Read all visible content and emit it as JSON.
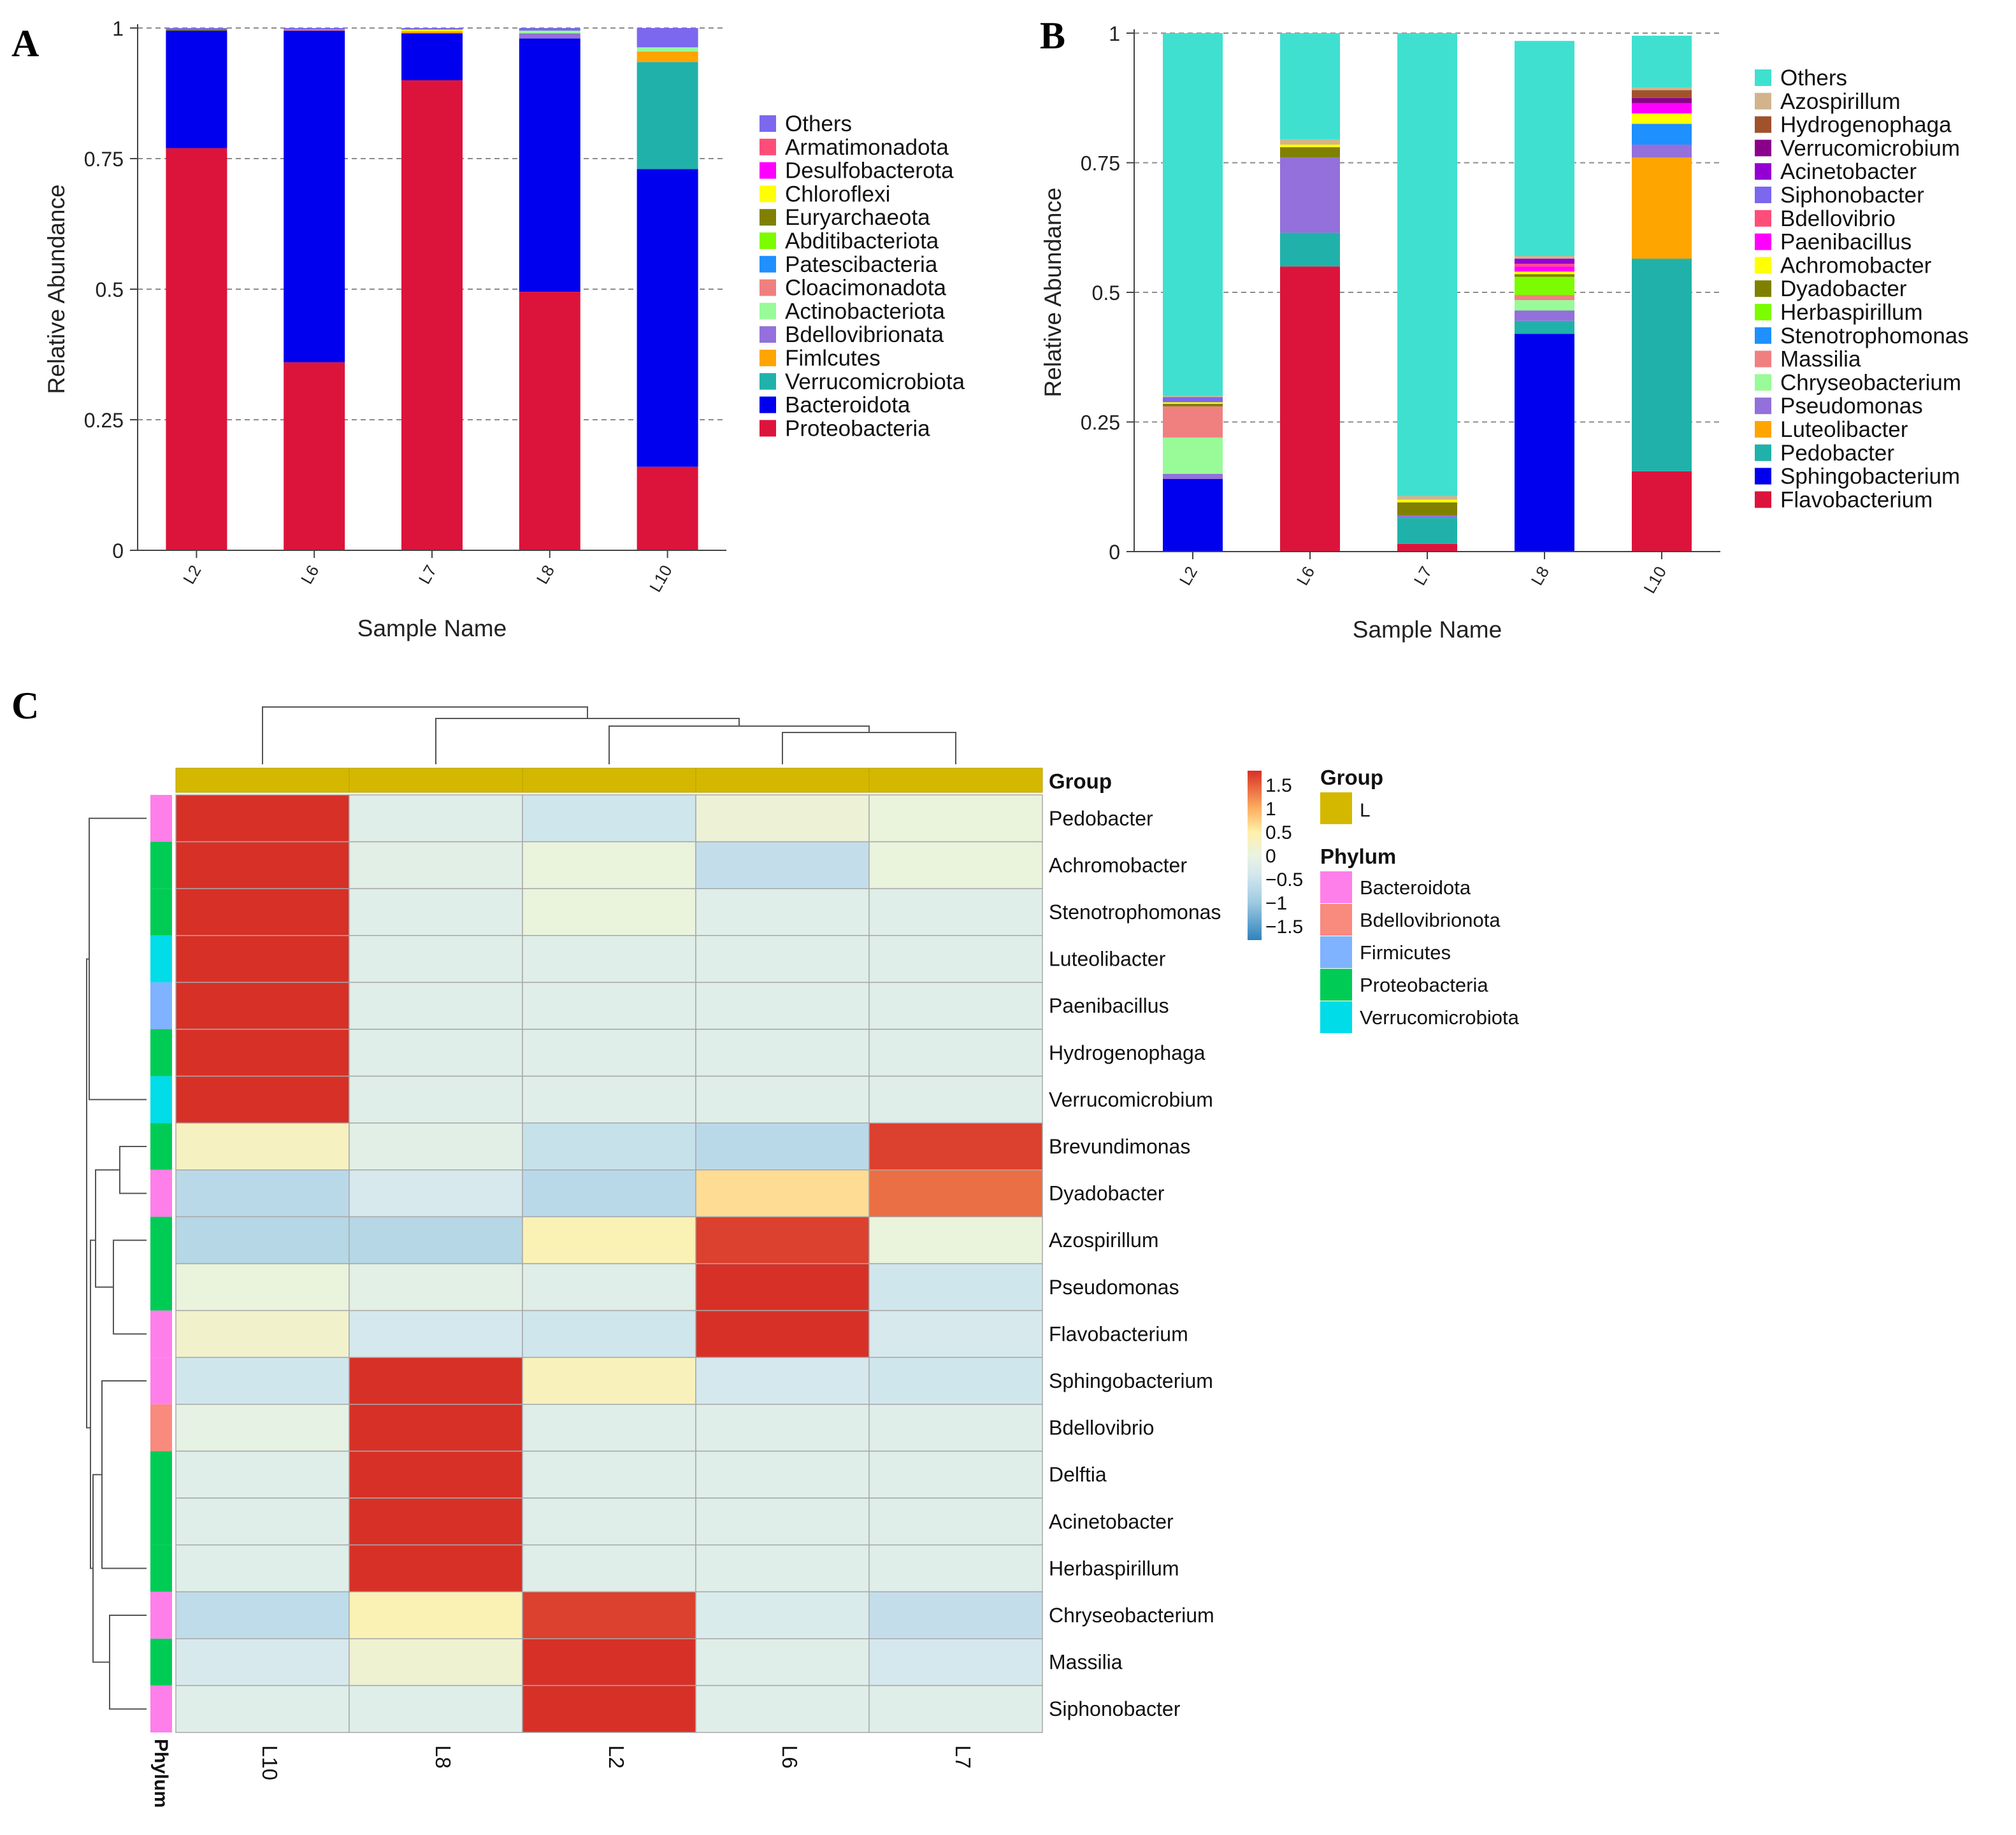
{
  "chart_data": [
    {
      "panel": "A",
      "type": "bar",
      "stacked": true,
      "xlabel": "Sample Name",
      "ylabel": "Relative Abundance",
      "ylim": [
        0,
        1
      ],
      "yticks": [
        "0",
        "0.25",
        "0.5",
        "0.75",
        "1"
      ],
      "grid": "dashed horizontal",
      "legend_position": "right",
      "categories": [
        "L2",
        "L6",
        "L7",
        "L8",
        "L10"
      ],
      "series": [
        {
          "name": "Proteobacteria",
          "color": "#DC143C",
          "values": [
            0.77,
            0.36,
            0.9,
            0.495,
            0.16
          ]
        },
        {
          "name": "Bacteroidota",
          "color": "#0000EE",
          "values": [
            0.225,
            0.635,
            0.09,
            0.485,
            0.57
          ]
        },
        {
          "name": "Verrucomicrobiota",
          "color": "#20B2AA",
          "values": [
            0,
            0,
            0,
            0,
            0.205
          ]
        },
        {
          "name": "Fimlcutes",
          "color": "#FFA500",
          "values": [
            0,
            0,
            0.004,
            0,
            0.02
          ]
        },
        {
          "name": "Bdellovibrionata",
          "color": "#9370DB",
          "values": [
            0,
            0,
            0,
            0.01,
            0
          ]
        },
        {
          "name": "Actinobacteriota",
          "color": "#98FB98",
          "values": [
            0,
            0,
            0,
            0.005,
            0.008
          ]
        },
        {
          "name": "Cloacimonadota",
          "color": "#F08080",
          "values": [
            0,
            0.002,
            0,
            0,
            0
          ]
        },
        {
          "name": "Patescibacteria",
          "color": "#1E90FF",
          "values": [
            0,
            0,
            0,
            0,
            0
          ]
        },
        {
          "name": "Abditibacteriota",
          "color": "#7CFC00",
          "values": [
            0,
            0,
            0,
            0,
            0
          ]
        },
        {
          "name": "Euryarchaeota",
          "color": "#808000",
          "values": [
            0.003,
            0,
            0,
            0,
            0
          ]
        },
        {
          "name": "Chloroflexi",
          "color": "#FFFF00",
          "values": [
            0,
            0,
            0.003,
            0,
            0
          ]
        },
        {
          "name": "Desulfobacterota",
          "color": "#FF00FF",
          "values": [
            0,
            0,
            0,
            0,
            0
          ]
        },
        {
          "name": "Armatimonadota",
          "color": "#FF4D7A",
          "values": [
            0,
            0,
            0,
            0,
            0
          ]
        },
        {
          "name": "Others",
          "color": "#7B68EE",
          "values": [
            0.002,
            0.003,
            0.003,
            0.005,
            0.037
          ]
        }
      ]
    },
    {
      "panel": "B",
      "type": "bar",
      "stacked": true,
      "xlabel": "Sample Name",
      "ylabel": "Relative Abundance",
      "ylim": [
        0,
        1
      ],
      "yticks": [
        "0",
        "0.25",
        "0.5",
        "0.75",
        "1"
      ],
      "grid": "dashed horizontal",
      "legend_position": "right",
      "categories": [
        "L2",
        "L6",
        "L7",
        "L8",
        "L10"
      ],
      "series": [
        {
          "name": "Flavobacterium",
          "color": "#DC143C",
          "values": [
            0,
            0.55,
            0.015,
            0,
            0.155
          ]
        },
        {
          "name": "Sphingobacterium",
          "color": "#0000EE",
          "values": [
            0.14,
            0,
            0,
            0.42,
            0
          ]
        },
        {
          "name": "Pedobacter",
          "color": "#20B2AA",
          "values": [
            0,
            0.065,
            0.05,
            0.025,
            0.41
          ]
        },
        {
          "name": "Luteolibacter",
          "color": "#FFA500",
          "values": [
            0,
            0,
            0,
            0,
            0.195
          ]
        },
        {
          "name": "Pseudomonas",
          "color": "#9370DB",
          "values": [
            0.01,
            0.145,
            0.005,
            0.02,
            0.025
          ]
        },
        {
          "name": "Chryseobacterium",
          "color": "#98FB98",
          "values": [
            0.07,
            0,
            0,
            0.02,
            0
          ]
        },
        {
          "name": "Massilia",
          "color": "#F08080",
          "values": [
            0.06,
            0,
            0,
            0.01,
            0
          ]
        },
        {
          "name": "Stenotrophomonas",
          "color": "#1E90FF",
          "values": [
            0,
            0,
            0,
            0,
            0.04
          ]
        },
        {
          "name": "Herbaspirillum",
          "color": "#7CFC00",
          "values": [
            0,
            0,
            0,
            0.035,
            0
          ]
        },
        {
          "name": "Dyadobacter",
          "color": "#808000",
          "values": [
            0.005,
            0.02,
            0.025,
            0.005,
            0
          ]
        },
        {
          "name": "Achromobacter",
          "color": "#FFFF00",
          "values": [
            0.003,
            0.005,
            0.005,
            0.005,
            0.02
          ]
        },
        {
          "name": "Paenibacillus",
          "color": "#FF00FF",
          "values": [
            0,
            0,
            0,
            0.01,
            0.02
          ]
        },
        {
          "name": "Bdellovibrio",
          "color": "#FF4D7A",
          "values": [
            0,
            0,
            0,
            0.005,
            0
          ]
        },
        {
          "name": "Siphonobacter",
          "color": "#7B68EE",
          "values": [
            0.01,
            0,
            0,
            0,
            0
          ]
        },
        {
          "name": "Acinetobacter",
          "color": "#9400D3",
          "values": [
            0,
            0,
            0,
            0.01,
            0
          ]
        },
        {
          "name": "Verrucomicrobium",
          "color": "#8B008B",
          "values": [
            0,
            0,
            0,
            0,
            0.01
          ]
        },
        {
          "name": "Hydrogenophaga",
          "color": "#A0522D",
          "values": [
            0,
            0,
            0,
            0,
            0.015
          ]
        },
        {
          "name": "Azospirillum",
          "color": "#D2B48C",
          "values": [
            0.002,
            0.01,
            0.007,
            0.005,
            0.005
          ]
        },
        {
          "name": "Others",
          "color": "#40E0D0",
          "values": [
            0.7,
            0.205,
            0.893,
            0.415,
            0.1
          ]
        }
      ]
    },
    {
      "panel": "C",
      "type": "heatmap",
      "columns": [
        "L10",
        "L8",
        "L2",
        "L6",
        "L7"
      ],
      "rows": [
        {
          "name": "Pedobacter",
          "phylum": "Bacteroidota",
          "values": [
            1.8,
            -0.2,
            -0.45,
            0.1,
            0.05
          ]
        },
        {
          "name": "Achromobacter",
          "phylum": "Proteobacteria",
          "values": [
            1.8,
            -0.15,
            0.05,
            -0.6,
            0.05
          ]
        },
        {
          "name": "Stenotrophomonas",
          "phylum": "Proteobacteria",
          "values": [
            1.8,
            -0.2,
            0.05,
            -0.2,
            -0.2
          ]
        },
        {
          "name": "Luteolibacter",
          "phylum": "Verrucomicrobiota",
          "values": [
            1.8,
            -0.2,
            -0.2,
            -0.2,
            -0.2
          ]
        },
        {
          "name": "Paenibacillus",
          "phylum": "Firmicutes",
          "values": [
            1.8,
            -0.2,
            -0.2,
            -0.2,
            -0.2
          ]
        },
        {
          "name": "Hydrogenophaga",
          "phylum": "Proteobacteria",
          "values": [
            1.8,
            -0.2,
            -0.2,
            -0.2,
            -0.2
          ]
        },
        {
          "name": "Verrucomicrobium",
          "phylum": "Verrucomicrobiota",
          "values": [
            1.8,
            -0.2,
            -0.2,
            -0.2,
            -0.2
          ]
        },
        {
          "name": "Brevundimonas",
          "phylum": "Proteobacteria",
          "values": [
            0.3,
            -0.15,
            -0.55,
            -0.7,
            1.7
          ]
        },
        {
          "name": "Dyadobacter",
          "phylum": "Bacteroidota",
          "values": [
            -0.7,
            -0.35,
            -0.7,
            0.65,
            1.4
          ]
        },
        {
          "name": "Azospirillum",
          "phylum": "Proteobacteria",
          "values": [
            -0.75,
            -0.75,
            0.4,
            1.7,
            0.05
          ]
        },
        {
          "name": "Pseudomonas",
          "phylum": "Proteobacteria",
          "values": [
            0.05,
            -0.1,
            -0.2,
            1.8,
            -0.45
          ]
        },
        {
          "name": "Flavobacterium",
          "phylum": "Bacteroidota",
          "values": [
            0.2,
            -0.4,
            -0.45,
            1.8,
            -0.35
          ]
        },
        {
          "name": "Sphingobacterium",
          "phylum": "Bacteroidota",
          "values": [
            -0.45,
            1.8,
            0.35,
            -0.4,
            -0.45
          ]
        },
        {
          "name": "Bdellovibrio",
          "phylum": "Bdellovibrionota",
          "values": [
            -0.05,
            1.8,
            -0.2,
            -0.2,
            -0.2
          ]
        },
        {
          "name": "Delftia",
          "phylum": "Proteobacteria",
          "values": [
            -0.2,
            1.8,
            -0.2,
            -0.2,
            -0.2
          ]
        },
        {
          "name": "Acinetobacter",
          "phylum": "Proteobacteria",
          "values": [
            -0.2,
            1.8,
            -0.2,
            -0.2,
            -0.2
          ]
        },
        {
          "name": "Herbaspirillum",
          "phylum": "Proteobacteria",
          "values": [
            -0.2,
            1.8,
            -0.2,
            -0.2,
            -0.2
          ]
        },
        {
          "name": "Chryseobacterium",
          "phylum": "Bacteroidota",
          "values": [
            -0.65,
            0.4,
            1.7,
            -0.3,
            -0.6
          ]
        },
        {
          "name": "Massilia",
          "phylum": "Proteobacteria",
          "values": [
            -0.35,
            0.15,
            1.8,
            -0.2,
            -0.4
          ]
        },
        {
          "name": "Siphonobacter",
          "phylum": "Bacteroidota",
          "values": [
            -0.2,
            -0.2,
            1.8,
            -0.2,
            -0.2
          ]
        }
      ],
      "colorbar": {
        "ticks": [
          "1.5",
          "1",
          "0.5",
          "0",
          "−0.5",
          "−1",
          "−1.5"
        ],
        "range": [
          -1.8,
          1.8
        ]
      },
      "group": {
        "title": "Group",
        "label": "L",
        "color": "#D4B800"
      },
      "phylum_legend": {
        "title": "Phylum",
        "axis_label": "Phylum",
        "items": [
          {
            "name": "Bacteroidota",
            "color": "#FF7FEA"
          },
          {
            "name": "Bdellovibrionota",
            "color": "#F88A7E"
          },
          {
            "name": "Firmicutes",
            "color": "#7FB2FF"
          },
          {
            "name": "Proteobacteria",
            "color": "#00CC55"
          },
          {
            "name": "Verrucomicrobiota",
            "color": "#00DCE8"
          }
        ]
      },
      "group_axis_label": "Group"
    }
  ]
}
